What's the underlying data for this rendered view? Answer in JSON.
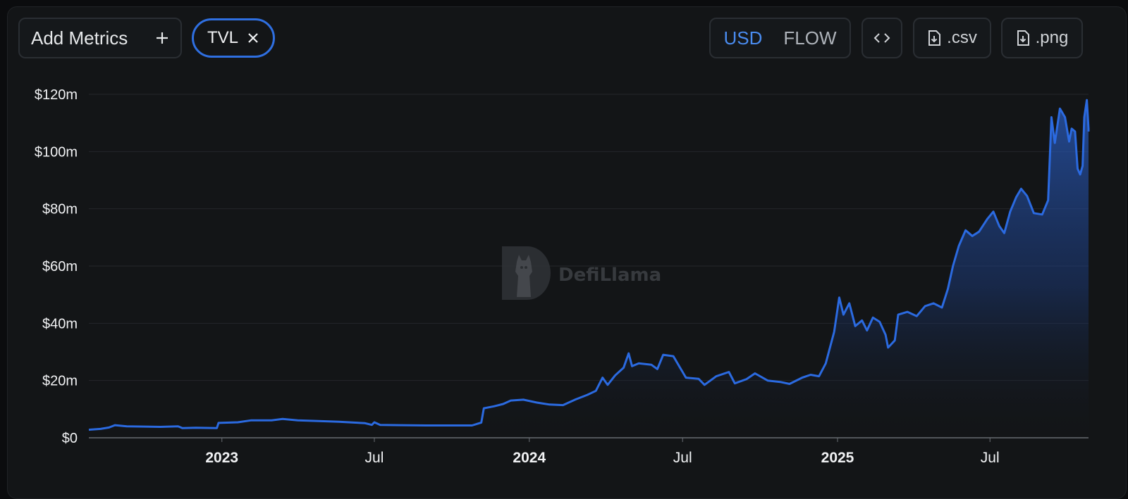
{
  "toolbar": {
    "add_metrics_label": "Add Metrics",
    "add_icon": "plus-icon",
    "metric_chip": "TVL",
    "chip_remove_icon": "close-icon",
    "currency_active": "USD",
    "currency_inactive": "FLOW",
    "embed_icon": "code-icon",
    "csv_label": ".csv",
    "png_label": ".png",
    "download_icon": "file-download-icon"
  },
  "watermark": {
    "text": "DefiLlama",
    "icon": "llama-logo-icon"
  },
  "colors": {
    "accent": "#2f6fe0",
    "line": "#2b6ae0",
    "background": "#131517",
    "grid": "#24272b"
  },
  "chart_data": {
    "type": "area",
    "title": "",
    "xlabel": "",
    "ylabel": "",
    "ylim": [
      0,
      120
    ],
    "y_unit": "millions USD",
    "yticks": [
      "$0",
      "$20m",
      "$40m",
      "$60m",
      "$80m",
      "$100m",
      "$120m"
    ],
    "xlim": [
      "2022-07-27",
      "2025-10-26"
    ],
    "xticks": [
      {
        "label": "2023",
        "date": "2023-01-01",
        "bold": true
      },
      {
        "label": "Jul",
        "date": "2023-07-01",
        "bold": false
      },
      {
        "label": "2024",
        "date": "2024-01-01",
        "bold": true
      },
      {
        "label": "Jul",
        "date": "2024-07-01",
        "bold": false
      },
      {
        "label": "2025",
        "date": "2025-01-01",
        "bold": true
      },
      {
        "label": "Jul",
        "date": "2025-07-01",
        "bold": false
      }
    ],
    "grid": true,
    "series": [
      {
        "name": "TVL",
        "points": [
          [
            "2022-07-27",
            2.8
          ],
          [
            "2022-08-10",
            3.1
          ],
          [
            "2022-08-20",
            3.6
          ],
          [
            "2022-08-27",
            4.4
          ],
          [
            "2022-09-10",
            4.0
          ],
          [
            "2022-10-01",
            3.9
          ],
          [
            "2022-10-20",
            3.8
          ],
          [
            "2022-11-10",
            4.0
          ],
          [
            "2022-11-15",
            3.4
          ],
          [
            "2022-12-01",
            3.5
          ],
          [
            "2022-12-26",
            3.4
          ],
          [
            "2022-12-28",
            5.2
          ],
          [
            "2023-01-20",
            5.4
          ],
          [
            "2023-02-05",
            6.1
          ],
          [
            "2023-03-01",
            6.1
          ],
          [
            "2023-03-14",
            6.6
          ],
          [
            "2023-04-01",
            6.1
          ],
          [
            "2023-04-20",
            5.9
          ],
          [
            "2023-05-20",
            5.6
          ],
          [
            "2023-06-20",
            5.1
          ],
          [
            "2023-06-28",
            4.5
          ],
          [
            "2023-07-01",
            5.4
          ],
          [
            "2023-07-08",
            4.5
          ],
          [
            "2023-08-01",
            4.4
          ],
          [
            "2023-09-01",
            4.3
          ],
          [
            "2023-10-01",
            4.3
          ],
          [
            "2023-10-25",
            4.3
          ],
          [
            "2023-11-05",
            5.3
          ],
          [
            "2023-11-08",
            10.3
          ],
          [
            "2023-11-20",
            11.0
          ],
          [
            "2023-12-01",
            11.8
          ],
          [
            "2023-12-10",
            13.0
          ],
          [
            "2023-12-25",
            13.3
          ],
          [
            "2024-01-10",
            12.3
          ],
          [
            "2024-01-25",
            11.6
          ],
          [
            "2024-02-10",
            11.4
          ],
          [
            "2024-02-25",
            13.4
          ],
          [
            "2024-03-10",
            15.0
          ],
          [
            "2024-03-20",
            16.4
          ],
          [
            "2024-03-28",
            21.0
          ],
          [
            "2024-04-03",
            18.5
          ],
          [
            "2024-04-12",
            21.8
          ],
          [
            "2024-04-22",
            24.5
          ],
          [
            "2024-04-28",
            29.5
          ],
          [
            "2024-05-02",
            25.0
          ],
          [
            "2024-05-10",
            26.0
          ],
          [
            "2024-05-25",
            25.5
          ],
          [
            "2024-06-01",
            24.0
          ],
          [
            "2024-06-08",
            29.0
          ],
          [
            "2024-06-20",
            28.5
          ],
          [
            "2024-06-28",
            24.5
          ],
          [
            "2024-07-05",
            21.0
          ],
          [
            "2024-07-20",
            20.6
          ],
          [
            "2024-07-27",
            18.5
          ],
          [
            "2024-08-10",
            21.5
          ],
          [
            "2024-08-25",
            23.0
          ],
          [
            "2024-09-01",
            19.0
          ],
          [
            "2024-09-15",
            20.5
          ],
          [
            "2024-09-25",
            22.5
          ],
          [
            "2024-10-10",
            20.0
          ],
          [
            "2024-10-25",
            19.5
          ],
          [
            "2024-11-05",
            18.8
          ],
          [
            "2024-11-20",
            21.0
          ],
          [
            "2024-11-30",
            22.0
          ],
          [
            "2024-12-10",
            21.5
          ],
          [
            "2024-12-18",
            26.0
          ],
          [
            "2024-12-28",
            37.0
          ],
          [
            "2025-01-03",
            49.0
          ],
          [
            "2025-01-08",
            43.0
          ],
          [
            "2025-01-15",
            47.0
          ],
          [
            "2025-01-22",
            39.0
          ],
          [
            "2025-01-30",
            41.0
          ],
          [
            "2025-02-05",
            37.5
          ],
          [
            "2025-02-12",
            42.0
          ],
          [
            "2025-02-20",
            40.5
          ],
          [
            "2025-02-27",
            36.0
          ],
          [
            "2025-03-02",
            31.5
          ],
          [
            "2025-03-10",
            34.0
          ],
          [
            "2025-03-14",
            43.0
          ],
          [
            "2025-03-25",
            44.0
          ],
          [
            "2025-04-05",
            42.5
          ],
          [
            "2025-04-15",
            46.0
          ],
          [
            "2025-04-25",
            47.0
          ],
          [
            "2025-05-05",
            45.5
          ],
          [
            "2025-05-12",
            52.0
          ],
          [
            "2025-05-18",
            60.0
          ],
          [
            "2025-05-25",
            67.0
          ],
          [
            "2025-06-02",
            72.5
          ],
          [
            "2025-06-10",
            70.5
          ],
          [
            "2025-06-18",
            72.0
          ],
          [
            "2025-06-28",
            76.5
          ],
          [
            "2025-07-05",
            79.0
          ],
          [
            "2025-07-12",
            74.0
          ],
          [
            "2025-07-18",
            71.5
          ],
          [
            "2025-07-25",
            79.0
          ],
          [
            "2025-08-01",
            84.0
          ],
          [
            "2025-08-07",
            87.0
          ],
          [
            "2025-08-14",
            84.5
          ],
          [
            "2025-08-22",
            78.5
          ],
          [
            "2025-09-01",
            78.0
          ],
          [
            "2025-09-08",
            83.0
          ],
          [
            "2025-09-12",
            112.0
          ],
          [
            "2025-09-16",
            103.0
          ],
          [
            "2025-09-22",
            115.0
          ],
          [
            "2025-09-28",
            112.0
          ],
          [
            "2025-10-03",
            103.5
          ],
          [
            "2025-10-06",
            108.0
          ],
          [
            "2025-10-10",
            107.0
          ],
          [
            "2025-10-13",
            94.0
          ],
          [
            "2025-10-16",
            92.0
          ],
          [
            "2025-10-19",
            95.0
          ],
          [
            "2025-10-21",
            112.0
          ],
          [
            "2025-10-24",
            118.0
          ],
          [
            "2025-10-28",
            108.0
          ],
          [
            "2025-11-03",
            107.0
          ]
        ]
      }
    ]
  }
}
